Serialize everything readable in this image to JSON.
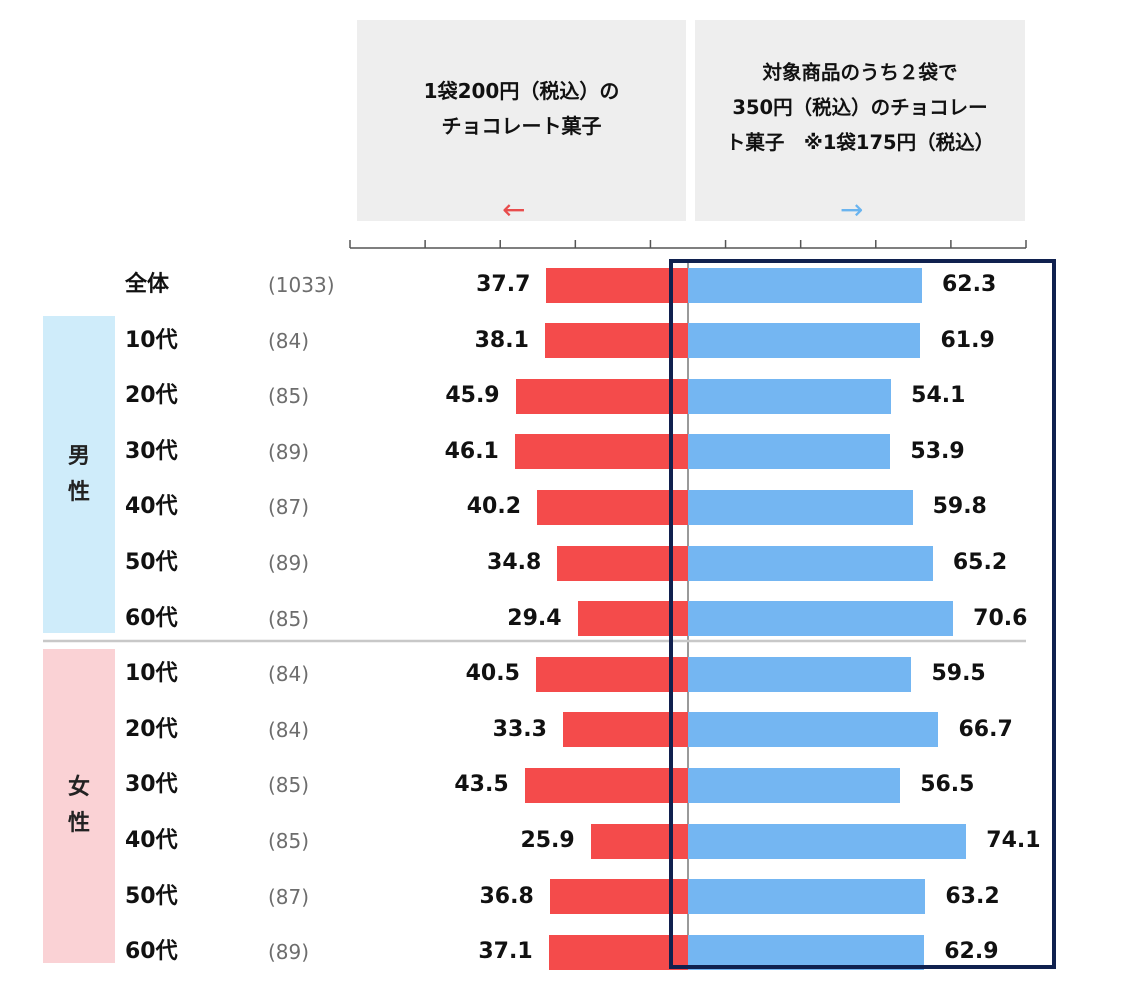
{
  "header": {
    "left_lines": [
      "1袋200円（税込）の",
      "チョコレート菓子"
    ],
    "left_arrow": "←",
    "right_lines": [
      "対象商品のうち２袋で",
      "350円（税込）のチョコレー",
      "ト菓子　※1袋175円（税込）"
    ],
    "right_arrow": "→"
  },
  "groups": {
    "male": [
      "男",
      "性"
    ],
    "female": [
      "女",
      "性"
    ]
  },
  "chart_data": {
    "type": "bar",
    "orientation": "horizontal-diverging",
    "categories": [
      "全体",
      "10代",
      "20代",
      "30代",
      "40代",
      "50代",
      "60代",
      "10代",
      "20代",
      "30代",
      "40代",
      "50代",
      "60代"
    ],
    "sample_sizes": [
      "(1033)",
      "(84)",
      "(85)",
      "(89)",
      "(87)",
      "(89)",
      "(85)",
      "(84)",
      "(84)",
      "(85)",
      "(85)",
      "(87)",
      "(89)"
    ],
    "groups": [
      "",
      "男性",
      "男性",
      "男性",
      "男性",
      "男性",
      "男性",
      "女性",
      "女性",
      "女性",
      "女性",
      "女性",
      "女性"
    ],
    "series": [
      {
        "values": [
          37.7,
          38.1,
          45.9,
          46.1,
          40.2,
          34.8,
          29.4,
          40.5,
          33.3,
          43.5,
          25.9,
          36.8,
          37.1
        ],
        "color": "#f44b4b"
      },
      {
        "values": [
          62.3,
          61.9,
          54.1,
          53.9,
          59.8,
          65.2,
          70.6,
          59.5,
          66.7,
          56.5,
          74.1,
          63.2,
          62.9
        ],
        "color": "#74b6f2"
      }
    ],
    "value_labels": {
      "left": [
        "37.7",
        "38.1",
        "45.9",
        "46.1",
        "40.2",
        "34.8",
        "29.4",
        "40.5",
        "33.3",
        "43.5",
        "25.9",
        "36.8",
        "37.1"
      ],
      "right": [
        "62.3",
        "61.9",
        "54.1",
        "53.9",
        "59.8",
        "65.2",
        "70.6",
        "59.5",
        "66.7",
        "56.5",
        "74.1",
        "63.2",
        "62.9"
      ]
    },
    "xlim": [
      0,
      100
    ],
    "grid": false,
    "highlight_color": "#10214f"
  }
}
